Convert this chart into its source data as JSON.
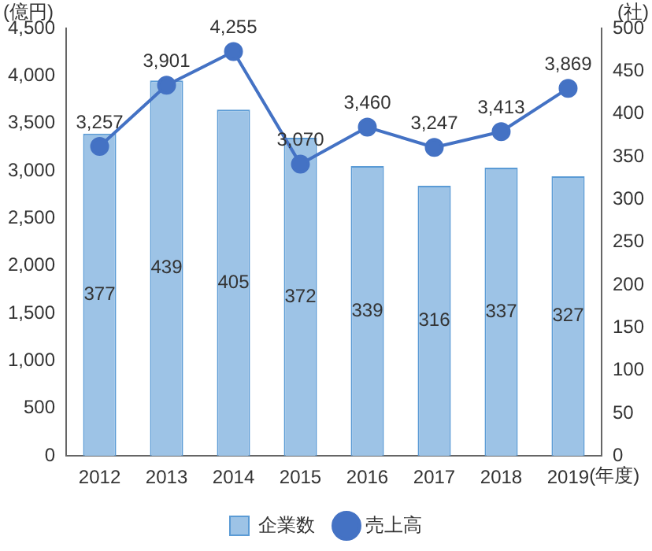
{
  "chart_data": {
    "type": "bar",
    "xlabel": "(年度)",
    "ylabel": "(億円)",
    "y2label": "(社)",
    "categories": [
      "2012",
      "2013",
      "2014",
      "2015",
      "2016",
      "2017",
      "2018",
      "2019"
    ],
    "series": [
      {
        "name": "企業数",
        "axis": "y2",
        "color": "#9dc3e6",
        "values": [
          377,
          439,
          405,
          372,
          339,
          316,
          337,
          327
        ],
        "value_labels": [
          "377",
          "439",
          "405",
          "372",
          "339",
          "316",
          "337",
          "327"
        ]
      },
      {
        "name": "売上高",
        "type": "line",
        "axis": "y",
        "color": "#4472c4",
        "values": [
          3257,
          3901,
          4255,
          3070,
          3460,
          3247,
          3413,
          3869
        ],
        "value_labels": [
          "3,257",
          "3,901",
          "4,255",
          "3,070",
          "3,460",
          "3,247",
          "3,413",
          "3,869"
        ]
      }
    ],
    "ylim": [
      0,
      4500
    ],
    "yticks": [
      0,
      500,
      {
        "value": 1000,
        "label": "1,000"
      },
      {
        "value": 1500,
        "label": "1,500"
      },
      {
        "value": 2000,
        "label": "2,000"
      },
      {
        "value": 2500,
        "label": "2,500"
      },
      {
        "value": 3000,
        "label": "3,000"
      },
      {
        "value": 3500,
        "label": "3,500"
      },
      {
        "value": 4000,
        "label": "4,000"
      },
      {
        "value": 4500,
        "label": "4,500"
      }
    ],
    "y2lim": [
      0,
      500
    ],
    "y2ticks": [
      0,
      50,
      100,
      150,
      200,
      250,
      300,
      350,
      400,
      450,
      500
    ],
    "legend": "bottom",
    "grid": false,
    "marker": "circle",
    "line_style": "solid"
  }
}
